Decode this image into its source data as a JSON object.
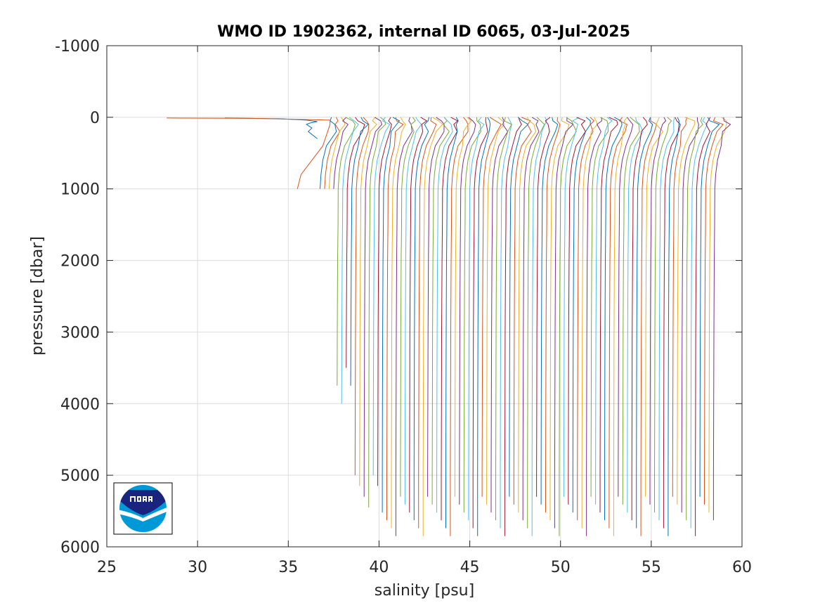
{
  "chart_data": {
    "type": "line",
    "title": "WMO ID 1902362, internal ID 6065, 03-Jul-2025",
    "xlabel": "salinity [psu]",
    "ylabel": "pressure [dbar]",
    "xlim": [
      25,
      60
    ],
    "ylim": [
      -1000,
      6000
    ],
    "y_reversed": true,
    "grid": true,
    "xticks": [
      25,
      30,
      35,
      40,
      45,
      50,
      55,
      60
    ],
    "yticks": [
      -1000,
      0,
      1000,
      2000,
      3000,
      4000,
      5000,
      6000
    ],
    "xtick_labels": [
      "25",
      "30",
      "35",
      "40",
      "45",
      "50",
      "55",
      "60"
    ],
    "ytick_labels": [
      "-1000",
      "0",
      "1000",
      "2000",
      "3000",
      "4000",
      "5000",
      "6000"
    ],
    "series_description": "one salinity profile per float cycle; each cycle offset in salinity",
    "series_colors": [
      "#0072BD",
      "#D95319",
      "#EDB120",
      "#7E2F8E",
      "#77AC30",
      "#4DBEEE",
      "#A2142F"
    ],
    "profile_count": 88,
    "profile_offsets_psu": {
      "first": 0.0,
      "step": 0.25
    },
    "deep_profile_base": {
      "pressure": [
        0,
        50,
        100,
        200,
        400,
        600,
        800,
        1000,
        1500,
        2000,
        3000,
        4000,
        5000,
        5900
      ],
      "salinity": [
        37.3,
        37.4,
        37.5,
        37.4,
        37.1,
        36.9,
        36.8,
        36.75,
        36.74,
        36.72,
        36.7,
        36.69,
        36.68,
        36.68
      ]
    },
    "shallow_profiles": [
      {
        "pressure": [
          10,
          20,
          40,
          60,
          80,
          100,
          150,
          200,
          300
        ],
        "salinity": [
          31.5,
          34.5,
          36.0,
          36.6,
          36.2,
          36.0,
          36.3,
          36.1,
          36.6
        ]
      },
      {
        "pressure": [
          10,
          15,
          40,
          100,
          400,
          800,
          1000
        ],
        "salinity": [
          28.3,
          33.0,
          37.3,
          37.3,
          36.9,
          35.7,
          35.5
        ]
      }
    ],
    "logo": "noaa-logo"
  }
}
